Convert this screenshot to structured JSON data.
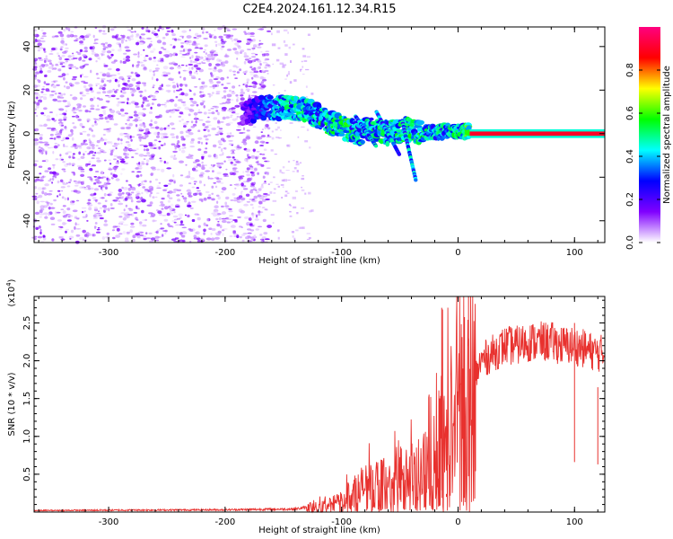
{
  "title": "C2E4.2024.161.12.34.R15",
  "chart_data": [
    {
      "type": "heatmap",
      "xlabel": "Height of straight line (km)",
      "ylabel": "Frequency (Hz)",
      "xlim": [
        -364,
        126
      ],
      "ylim": [
        -50,
        49
      ],
      "xticks": [
        -300,
        -200,
        -100,
        0,
        100
      ],
      "yticks": [
        -40,
        -20,
        0,
        20,
        40
      ],
      "xtick_labels": [
        "-300",
        "-200",
        "-100",
        "0",
        "100"
      ],
      "ytick_labels": [
        "-40",
        "-20",
        "0",
        "20",
        "40"
      ],
      "colorbar": {
        "label": "Normalized spectral amplitude",
        "range": [
          0,
          1
        ],
        "ticks": [
          0.0,
          0.2,
          0.4,
          0.6,
          0.8
        ],
        "tick_labels": [
          "0.0",
          "0.2",
          "0.4",
          "0.6",
          "0.8"
        ],
        "colormap": [
          "#ffffff",
          "#8000ff",
          "#0000ff",
          "#00ffff",
          "#00ff00",
          "#ffff00",
          "#ff0000",
          "#ff0080"
        ]
      },
      "features": {
        "noise_region": {
          "x": [
            -364,
            -162
          ],
          "y": [
            -50,
            49
          ],
          "amplitude": 0.1
        },
        "sparse_region": {
          "x": [
            -162,
            -126
          ],
          "y": [
            -50,
            49
          ],
          "amplitude": 0.05
        },
        "signal_track": [
          {
            "x": -185,
            "y": 9,
            "amp": 0.15
          },
          {
            "x": -170,
            "y": 12,
            "amp": 0.3
          },
          {
            "x": -150,
            "y": 12,
            "amp": 0.45
          },
          {
            "x": -130,
            "y": 11,
            "amp": 0.45
          },
          {
            "x": -110,
            "y": 5,
            "amp": 0.5
          },
          {
            "x": -95,
            "y": 2,
            "amp": 0.5
          },
          {
            "x": -85,
            "y": 0,
            "amp": 0.45
          },
          {
            "x": -75,
            "y": 3,
            "amp": 0.45
          },
          {
            "x": -60,
            "y": 0,
            "amp": 0.5
          },
          {
            "x": -45,
            "y": 2,
            "amp": 0.5
          },
          {
            "x": -30,
            "y": 0,
            "amp": 0.5
          },
          {
            "x": -15,
            "y": 1,
            "amp": 0.45
          },
          {
            "x": 0,
            "y": 1,
            "amp": 0.5
          },
          {
            "x": 10,
            "y": 1,
            "amp": 0.55
          },
          {
            "x": 126,
            "y": 0,
            "amp": 0.9
          }
        ],
        "steady_line": {
          "x": [
            10,
            126
          ],
          "y": 0,
          "amp": 0.9
        }
      }
    },
    {
      "type": "line",
      "xlabel": "Height of straight line (km)",
      "ylabel": "SNR (10 * v/v)",
      "y_multiplier": "(x10^4)",
      "y_multiplier_base": "(x10",
      "y_multiplier_exp": "4",
      "y_multiplier_close": ")",
      "xlim": [
        -364,
        126
      ],
      "ylim": [
        0,
        28500
      ],
      "xticks": [
        -300,
        -200,
        -100,
        0,
        100
      ],
      "yticks": [
        5000,
        10000,
        15000,
        20000,
        25000
      ],
      "xtick_labels": [
        "-300",
        "-200",
        "-100",
        "0",
        "100"
      ],
      "ytick_labels": [
        "0.5",
        "1.0",
        "1.5",
        "2.0",
        "2.5"
      ],
      "series": [
        {
          "color": "#e8312e",
          "x": [
            -364,
            -300,
            -200,
            -140,
            -120,
            -110,
            -100,
            -90,
            -80,
            -70,
            -60,
            -50,
            -40,
            -30,
            -25,
            -20,
            -15,
            -10,
            -5,
            0,
            5,
            10,
            15,
            20,
            25,
            30,
            40,
            50,
            60,
            70,
            80,
            90,
            100,
            110,
            120,
            126
          ],
          "y": [
            200,
            250,
            300,
            400,
            800,
            1000,
            1500,
            2500,
            3500,
            3500,
            4000,
            4000,
            4500,
            5500,
            9000,
            7000,
            10000,
            8000,
            13000,
            14000,
            15000,
            16000,
            18000,
            20000,
            20500,
            21000,
            22000,
            22000,
            22500,
            22500,
            22500,
            22000,
            22000,
            21500,
            21000,
            21000
          ],
          "spikes": [
            {
              "x": -14,
              "y": 27000
            },
            {
              "x": -10,
              "y": 2000
            },
            {
              "x": 9,
              "y": 28500
            },
            {
              "x": 15,
              "y": 20000
            },
            {
              "x": 100,
              "y": 25000
            },
            {
              "x": 120,
              "y": 16500
            }
          ]
        }
      ]
    }
  ]
}
